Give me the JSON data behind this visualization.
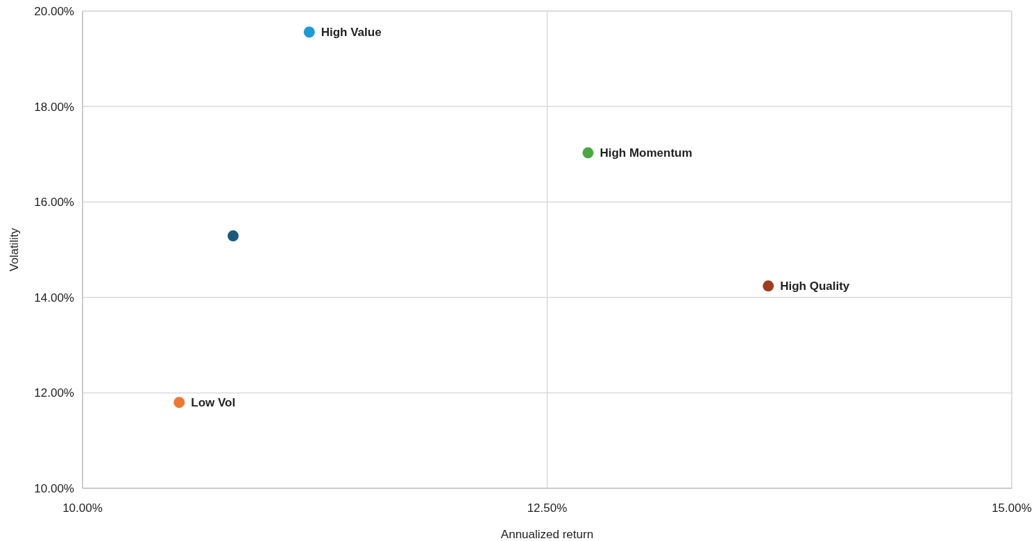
{
  "chart_data": {
    "type": "scatter",
    "xlabel": "Annualized return",
    "ylabel": "Volatility",
    "xlim": [
      10,
      15
    ],
    "xticks": [
      {
        "value": 10,
        "label": "10.00%"
      },
      {
        "value": 12.5,
        "label": "12.50%"
      },
      {
        "value": 15,
        "label": "15.00%"
      }
    ],
    "ylim": [
      10,
      20
    ],
    "yticks": [
      {
        "value": 10,
        "label": "10.00%"
      },
      {
        "value": 12,
        "label": "12.00%"
      },
      {
        "value": 14,
        "label": "14.00%"
      },
      {
        "value": 16,
        "label": "16.00%"
      },
      {
        "value": 18,
        "label": "18.00%"
      },
      {
        "value": 20,
        "label": "20.00%"
      }
    ],
    "grid": true,
    "marker": "circle",
    "series": [
      {
        "name": "High Value",
        "color": "#1a9bd7",
        "x": [
          11.22
        ],
        "values": [
          19.56
        ]
      },
      {
        "name": "High Momentum",
        "color": "#4aa843",
        "x": [
          12.72
        ],
        "values": [
          17.03
        ]
      },
      {
        "color": "#1b5a7a",
        "x": [
          10.81
        ],
        "values": [
          15.29
        ]
      },
      {
        "name": "High Quality",
        "color": "#9c3d1e",
        "x": [
          13.69
        ],
        "values": [
          14.24
        ]
      },
      {
        "name": "Low Vol",
        "color": "#ee7733",
        "x": [
          10.52
        ],
        "values": [
          11.8
        ]
      }
    ]
  }
}
